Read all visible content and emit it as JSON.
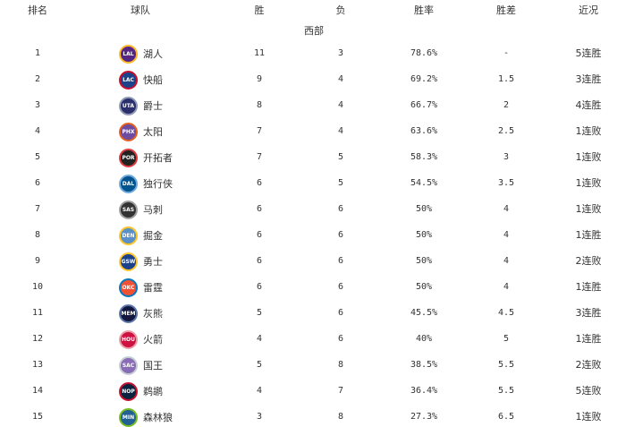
{
  "headers": [
    "排名",
    "球队",
    "胜",
    "负",
    "胜率",
    "胜差",
    "近况"
  ],
  "conference": "西部",
  "rows": [
    {
      "rank": "1",
      "abbr": "LAL",
      "team": "湖人",
      "w": "11",
      "l": "3",
      "pct": "78.6%",
      "gb": "-",
      "streak": "5连胜",
      "c1": "#552583",
      "c2": "#FDB927"
    },
    {
      "rank": "2",
      "abbr": "LAC",
      "team": "快船",
      "w": "9",
      "l": "4",
      "pct": "69.2%",
      "gb": "1.5",
      "streak": "3连胜",
      "c1": "#1D428A",
      "c2": "#C8102E"
    },
    {
      "rank": "3",
      "abbr": "UTA",
      "team": "爵士",
      "w": "8",
      "l": "4",
      "pct": "66.7%",
      "gb": "2",
      "streak": "4连胜",
      "c1": "#2B2F6E",
      "c2": "#8E9BB5"
    },
    {
      "rank": "4",
      "abbr": "PHX",
      "team": "太阳",
      "w": "7",
      "l": "4",
      "pct": "63.6%",
      "gb": "2.5",
      "streak": "1连败",
      "c1": "#6C4BA0",
      "c2": "#E56020"
    },
    {
      "rank": "5",
      "abbr": "POR",
      "team": "开拓者",
      "w": "7",
      "l": "5",
      "pct": "58.3%",
      "gb": "3",
      "streak": "1连败",
      "c1": "#222222",
      "c2": "#E03A3E"
    },
    {
      "rank": "6",
      "abbr": "DAL",
      "team": "独行侠",
      "w": "6",
      "l": "5",
      "pct": "54.5%",
      "gb": "3.5",
      "streak": "1连败",
      "c1": "#00538C",
      "c2": "#6FA8DC"
    },
    {
      "rank": "7",
      "abbr": "SAS",
      "team": "马刺",
      "w": "6",
      "l": "6",
      "pct": "50%",
      "gb": "4",
      "streak": "1连败",
      "c1": "#333333",
      "c2": "#A0A0A0"
    },
    {
      "rank": "8",
      "abbr": "DEN",
      "team": "掘金",
      "w": "6",
      "l": "6",
      "pct": "50%",
      "gb": "4",
      "streak": "1连胜",
      "c1": "#5A8FC8",
      "c2": "#FEC524"
    },
    {
      "rank": "9",
      "abbr": "GSW",
      "team": "勇士",
      "w": "6",
      "l": "6",
      "pct": "50%",
      "gb": "4",
      "streak": "2连败",
      "c1": "#1D428A",
      "c2": "#FFC72C"
    },
    {
      "rank": "10",
      "abbr": "OKC",
      "team": "雷霆",
      "w": "6",
      "l": "6",
      "pct": "50%",
      "gb": "4",
      "streak": "1连胜",
      "c1": "#F05133",
      "c2": "#007AC1"
    },
    {
      "rank": "11",
      "abbr": "MEM",
      "team": "灰熊",
      "w": "5",
      "l": "6",
      "pct": "45.5%",
      "gb": "4.5",
      "streak": "3连胜",
      "c1": "#12173F",
      "c2": "#5D76A9"
    },
    {
      "rank": "12",
      "abbr": "HOU",
      "team": "火箭",
      "w": "4",
      "l": "6",
      "pct": "40%",
      "gb": "5",
      "streak": "1连胜",
      "c1": "#CE1141",
      "c2": "#E8A0A8"
    },
    {
      "rank": "13",
      "abbr": "SAC",
      "team": "国王",
      "w": "5",
      "l": "8",
      "pct": "38.5%",
      "gb": "5.5",
      "streak": "2连败",
      "c1": "#8A6BB5",
      "c2": "#C4CED4"
    },
    {
      "rank": "14",
      "abbr": "NOP",
      "team": "鹈鹕",
      "w": "4",
      "l": "7",
      "pct": "36.4%",
      "gb": "5.5",
      "streak": "5连败",
      "c1": "#0C2340",
      "c2": "#C8102E"
    },
    {
      "rank": "15",
      "abbr": "MIN",
      "team": "森林狼",
      "w": "3",
      "l": "8",
      "pct": "27.3%",
      "gb": "6.5",
      "streak": "1连败",
      "c1": "#236192",
      "c2": "#78BE20"
    }
  ]
}
